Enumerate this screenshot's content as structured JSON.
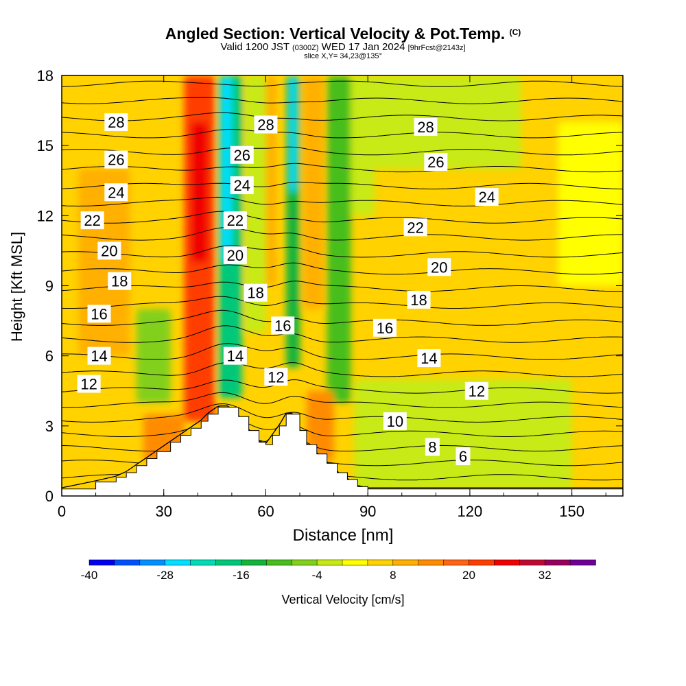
{
  "header": {
    "title": "Angled Section: Vertical Velocity & Pot.Temp.",
    "title_mark": "(C)",
    "valid_prefix": "Valid 1200 JST",
    "valid_utc": "(0300Z)",
    "valid_date": "WED 17 Jan 2024",
    "forecast": "[9hrFcst@2143z]",
    "slice": "slice X,Y= 34,23@135°"
  },
  "chart_data": {
    "type": "heatmap",
    "xlabel": "Distance [nm]",
    "ylabel": "Height [Kft MSL]",
    "xlim": [
      0,
      165
    ],
    "ylim": [
      0,
      18
    ],
    "x_ticks": [
      "0",
      "30",
      "60",
      "90",
      "120",
      "150"
    ],
    "y_ticks": [
      "0",
      "3",
      "6",
      "9",
      "12",
      "15",
      "18"
    ],
    "terrain": {
      "x": [
        0,
        10,
        16,
        19,
        22,
        25,
        28,
        32,
        35,
        38,
        41,
        43,
        46,
        49,
        52,
        55,
        58,
        60,
        62,
        64,
        66,
        68,
        70,
        72,
        75,
        78,
        81,
        84,
        87,
        90,
        165
      ],
      "y": [
        0.3,
        0.6,
        0.8,
        1.0,
        1.3,
        1.6,
        1.9,
        2.3,
        2.6,
        2.9,
        3.2,
        3.5,
        3.8,
        3.8,
        3.4,
        2.8,
        2.3,
        2.2,
        2.6,
        3.0,
        3.5,
        3.5,
        2.8,
        2.2,
        1.8,
        1.4,
        1.0,
        0.7,
        0.4,
        0.3,
        0.3
      ]
    },
    "vertical_velocity": {
      "label": "Vertical Velocity [cm/s]",
      "background_value": 4,
      "features": [
        {
          "x_range": [
            36,
            45
          ],
          "y_range": [
            3.2,
            18
          ],
          "value": 22
        },
        {
          "x_range": [
            38,
            43
          ],
          "y_range": [
            10,
            16
          ],
          "value": 26
        },
        {
          "x_range": [
            46,
            53
          ],
          "y_range": [
            4.2,
            18
          ],
          "value": -20
        },
        {
          "x_range": [
            47,
            50
          ],
          "y_range": [
            10,
            18
          ],
          "value": -28
        },
        {
          "x_range": [
            54,
            60
          ],
          "y_range": [
            7,
            18
          ],
          "value": -4
        },
        {
          "x_range": [
            60,
            63
          ],
          "y_range": [
            9,
            18
          ],
          "value": 10
        },
        {
          "x_range": [
            66,
            70
          ],
          "y_range": [
            5.5,
            18
          ],
          "value": -16
        },
        {
          "x_range": [
            67,
            69
          ],
          "y_range": [
            13,
            18
          ],
          "value": -28
        },
        {
          "x_range": [
            71,
            77
          ],
          "y_range": [
            8,
            18
          ],
          "value": 8
        },
        {
          "x_range": [
            78,
            85
          ],
          "y_range": [
            4,
            18
          ],
          "value": -10
        },
        {
          "x_range": [
            85,
            92
          ],
          "y_range": [
            12,
            18
          ],
          "value": -4
        },
        {
          "x_range": [
            86,
            150
          ],
          "y_range": [
            0.3,
            5
          ],
          "value": -4
        },
        {
          "x_range": [
            92,
            135
          ],
          "y_range": [
            14,
            18
          ],
          "value": -2
        },
        {
          "x_range": [
            5,
            20
          ],
          "y_range": [
            6,
            14
          ],
          "value": 10
        },
        {
          "x_range": [
            22,
            32
          ],
          "y_range": [
            4,
            8
          ],
          "value": -6
        },
        {
          "x_range": [
            24,
            36
          ],
          "y_range": [
            1.5,
            3.5
          ],
          "value": 12
        },
        {
          "x_range": [
            72,
            80
          ],
          "y_range": [
            1.5,
            4.5
          ],
          "value": 14
        },
        {
          "x_range": [
            146,
            165
          ],
          "y_range": [
            9,
            16
          ],
          "value": 2
        }
      ],
      "colorbar": {
        "ticks": [
          "-40",
          "-28",
          "-16",
          "-4",
          "8",
          "20",
          "32"
        ],
        "colors": [
          "#0000f0",
          "#0050ff",
          "#0090ff",
          "#00e0ff",
          "#00dcb4",
          "#00c878",
          "#14b43c",
          "#46be1e",
          "#82d01a",
          "#c8ea14",
          "#ffff00",
          "#ffd200",
          "#ffb000",
          "#ff8c00",
          "#ff6414",
          "#ff3c00",
          "#f00000",
          "#be0a32",
          "#96005a",
          "#6e0096"
        ]
      }
    },
    "potential_temperature": {
      "contour_interval": 1,
      "contour_levels": [
        2,
        3,
        4,
        5,
        6,
        7,
        8,
        9,
        10,
        11,
        12,
        13,
        14,
        15,
        16,
        17,
        18,
        19,
        20,
        21,
        22,
        23,
        24,
        25,
        26,
        27,
        28,
        29,
        30
      ],
      "labels": [
        {
          "text": "28",
          "x": 16,
          "y": 16.0
        },
        {
          "text": "28",
          "x": 60,
          "y": 15.9
        },
        {
          "text": "28",
          "x": 107,
          "y": 15.8
        },
        {
          "text": "26",
          "x": 16,
          "y": 14.4
        },
        {
          "text": "26",
          "x": 53,
          "y": 14.6
        },
        {
          "text": "26",
          "x": 110,
          "y": 14.3
        },
        {
          "text": "24",
          "x": 16,
          "y": 13.0
        },
        {
          "text": "24",
          "x": 53,
          "y": 13.3
        },
        {
          "text": "24",
          "x": 125,
          "y": 12.8
        },
        {
          "text": "22",
          "x": 9,
          "y": 11.8
        },
        {
          "text": "22",
          "x": 51,
          "y": 11.8
        },
        {
          "text": "22",
          "x": 104,
          "y": 11.5
        },
        {
          "text": "20",
          "x": 14,
          "y": 10.5
        },
        {
          "text": "20",
          "x": 51,
          "y": 10.3
        },
        {
          "text": "20",
          "x": 111,
          "y": 9.8
        },
        {
          "text": "18",
          "x": 17,
          "y": 9.2
        },
        {
          "text": "18",
          "x": 57,
          "y": 8.7
        },
        {
          "text": "18",
          "x": 105,
          "y": 8.4
        },
        {
          "text": "16",
          "x": 11,
          "y": 7.8
        },
        {
          "text": "16",
          "x": 65,
          "y": 7.3
        },
        {
          "text": "16",
          "x": 95,
          "y": 7.2
        },
        {
          "text": "14",
          "x": 11,
          "y": 6.0
        },
        {
          "text": "14",
          "x": 51,
          "y": 6.0
        },
        {
          "text": "14",
          "x": 108,
          "y": 5.9
        },
        {
          "text": "12",
          "x": 8,
          "y": 4.8
        },
        {
          "text": "12",
          "x": 63,
          "y": 5.1
        },
        {
          "text": "12",
          "x": 122,
          "y": 4.5
        },
        {
          "text": "10",
          "x": 98,
          "y": 3.2
        },
        {
          "text": "8",
          "x": 109,
          "y": 2.1
        },
        {
          "text": "6",
          "x": 118,
          "y": 1.7
        }
      ]
    }
  }
}
